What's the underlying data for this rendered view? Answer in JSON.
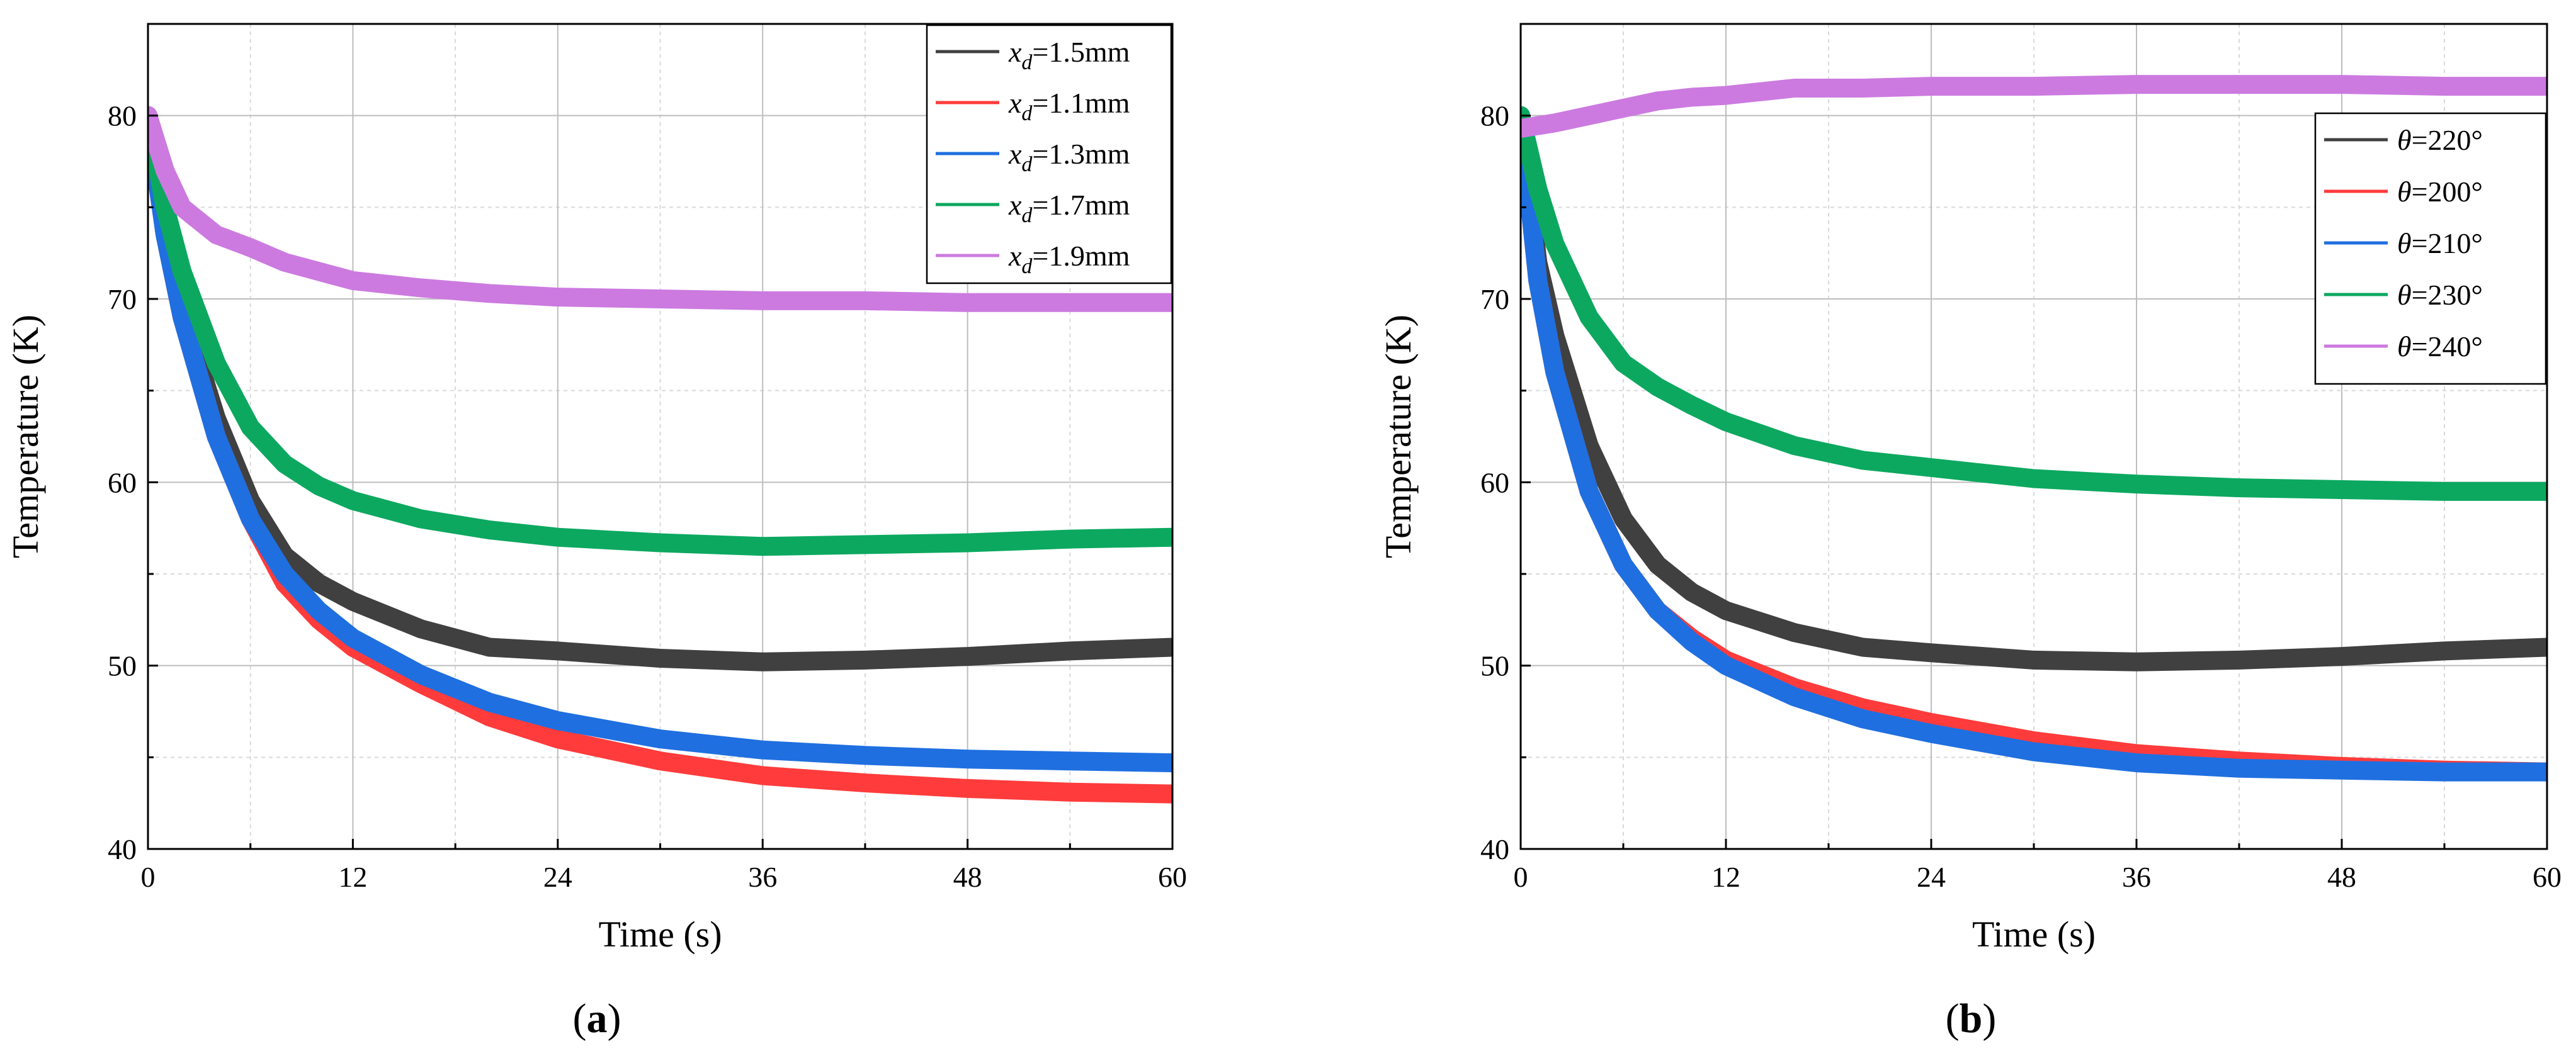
{
  "chart_data": [
    {
      "type": "line",
      "panel_label": "(a)",
      "panel_letter": "a",
      "xlabel": "Time (s)",
      "ylabel": "Temperature (K)",
      "xlim": [
        0,
        60
      ],
      "ylim": [
        40,
        85
      ],
      "xticks": [
        0,
        12,
        24,
        36,
        48,
        60
      ],
      "yticks": [
        40,
        50,
        60,
        70,
        80
      ],
      "grid": true,
      "legend_position": "top-right",
      "series": [
        {
          "name": "x_d=1.5mm",
          "legend_var": "x",
          "legend_sub": "d",
          "legend_rest": "=1.5mm",
          "color": "#404040",
          "x": [
            0,
            1,
            2,
            4,
            6,
            8,
            10,
            12,
            16,
            20,
            24,
            30,
            36,
            42,
            48,
            54,
            60
          ],
          "y": [
            80,
            74,
            69.5,
            63.5,
            59,
            56,
            54.5,
            53.5,
            52,
            51,
            50.8,
            50.4,
            50.2,
            50.3,
            50.5,
            50.8,
            51
          ]
        },
        {
          "name": "x_d=1.1mm",
          "legend_var": "x",
          "legend_sub": "d",
          "legend_rest": "=1.1mm",
          "color": "#ff3b3b",
          "x": [
            0,
            1,
            2,
            4,
            6,
            8,
            10,
            12,
            16,
            20,
            24,
            30,
            36,
            42,
            48,
            54,
            60
          ],
          "y": [
            80,
            73.5,
            69,
            62.5,
            58,
            54.5,
            52.5,
            51,
            49,
            47.2,
            46,
            44.8,
            44,
            43.6,
            43.3,
            43.1,
            43
          ]
        },
        {
          "name": "x_d=1.3mm",
          "legend_var": "x",
          "legend_sub": "d",
          "legend_rest": "=1.3mm",
          "color": "#1f6fe0",
          "x": [
            0,
            1,
            2,
            4,
            6,
            8,
            10,
            12,
            16,
            20,
            24,
            30,
            36,
            42,
            48,
            54,
            60
          ],
          "y": [
            80,
            73.5,
            69,
            62.5,
            58,
            55,
            53,
            51.5,
            49.5,
            48,
            47,
            46,
            45.4,
            45.1,
            44.9,
            44.8,
            44.7
          ]
        },
        {
          "name": "x_d=1.7mm",
          "legend_var": "x",
          "legend_sub": "d",
          "legend_rest": "=1.7mm",
          "color": "#0ca860",
          "x": [
            0,
            1,
            2,
            4,
            6,
            8,
            10,
            12,
            16,
            20,
            24,
            30,
            36,
            42,
            48,
            54,
            60
          ],
          "y": [
            80,
            75,
            71.5,
            66.5,
            63,
            61,
            59.8,
            59,
            58,
            57.4,
            57,
            56.7,
            56.5,
            56.6,
            56.7,
            56.9,
            57
          ]
        },
        {
          "name": "x_d=1.9mm",
          "legend_var": "x",
          "legend_sub": "d",
          "legend_rest": "=1.9mm",
          "color": "#cc7ae0",
          "x": [
            0,
            1,
            2,
            4,
            6,
            8,
            10,
            12,
            16,
            20,
            24,
            30,
            36,
            42,
            48,
            54,
            60
          ],
          "y": [
            80,
            77,
            75,
            73.5,
            72.8,
            72,
            71.5,
            71,
            70.6,
            70.3,
            70.1,
            70,
            69.9,
            69.9,
            69.8,
            69.8,
            69.8
          ]
        }
      ]
    },
    {
      "type": "line",
      "panel_label": "(b)",
      "panel_letter": "b",
      "xlabel": "Time (s)",
      "ylabel": "Temperature (K)",
      "xlim": [
        0,
        60
      ],
      "ylim": [
        40,
        85
      ],
      "xticks": [
        0,
        12,
        24,
        36,
        48,
        60
      ],
      "yticks": [
        40,
        50,
        60,
        70,
        80
      ],
      "grid": true,
      "legend_position": "upper-right",
      "series": [
        {
          "name": "θ=220°",
          "legend_var": "θ",
          "legend_sub": "",
          "legend_rest": "=220°",
          "color": "#404040",
          "x": [
            0,
            1,
            2,
            4,
            6,
            8,
            10,
            12,
            16,
            20,
            24,
            30,
            36,
            42,
            48,
            54,
            60
          ],
          "y": [
            80,
            72,
            68,
            62,
            58,
            55.5,
            54,
            53,
            51.8,
            51,
            50.7,
            50.3,
            50.2,
            50.3,
            50.5,
            50.8,
            51
          ]
        },
        {
          "name": "θ=200°",
          "legend_var": "θ",
          "legend_sub": "",
          "legend_rest": "=200°",
          "color": "#ff3b3b",
          "x": [
            0,
            1,
            2,
            4,
            6,
            8,
            10,
            12,
            16,
            20,
            24,
            30,
            36,
            42,
            48,
            54,
            60
          ],
          "y": [
            80,
            71,
            66,
            59.5,
            55.5,
            53,
            51.5,
            50.3,
            48.8,
            47.7,
            46.9,
            45.9,
            45.2,
            44.8,
            44.5,
            44.3,
            44.2
          ]
        },
        {
          "name": "θ=210°",
          "legend_var": "θ",
          "legend_sub": "",
          "legend_rest": "=210°",
          "color": "#1f6fe0",
          "x": [
            0,
            1,
            2,
            4,
            6,
            8,
            10,
            12,
            16,
            20,
            24,
            30,
            36,
            42,
            48,
            54,
            60
          ],
          "y": [
            80,
            71,
            66,
            59.5,
            55.5,
            53,
            51.3,
            50,
            48.3,
            47.1,
            46.3,
            45.3,
            44.7,
            44.4,
            44.3,
            44.2,
            44.2
          ]
        },
        {
          "name": "θ=230°",
          "legend_var": "θ",
          "legend_sub": "",
          "legend_rest": "=230°",
          "color": "#0ca860",
          "x": [
            0,
            1,
            2,
            4,
            6,
            8,
            10,
            12,
            16,
            20,
            24,
            30,
            36,
            42,
            48,
            54,
            60
          ],
          "y": [
            80,
            76,
            73,
            69,
            66.5,
            65.2,
            64.2,
            63.3,
            62,
            61.2,
            60.8,
            60.2,
            59.9,
            59.7,
            59.6,
            59.5,
            59.5
          ]
        },
        {
          "name": "θ=240°",
          "legend_var": "θ",
          "legend_sub": "",
          "legend_rest": "=240°",
          "color": "#cc7ae0",
          "x": [
            0,
            2,
            4,
            6,
            8,
            10,
            12,
            14,
            16,
            20,
            24,
            30,
            36,
            42,
            48,
            54,
            60
          ],
          "y": [
            79.3,
            79.6,
            80,
            80.4,
            80.8,
            81,
            81.1,
            81.3,
            81.5,
            81.5,
            81.6,
            81.6,
            81.7,
            81.7,
            81.7,
            81.6,
            81.6
          ]
        }
      ]
    }
  ]
}
